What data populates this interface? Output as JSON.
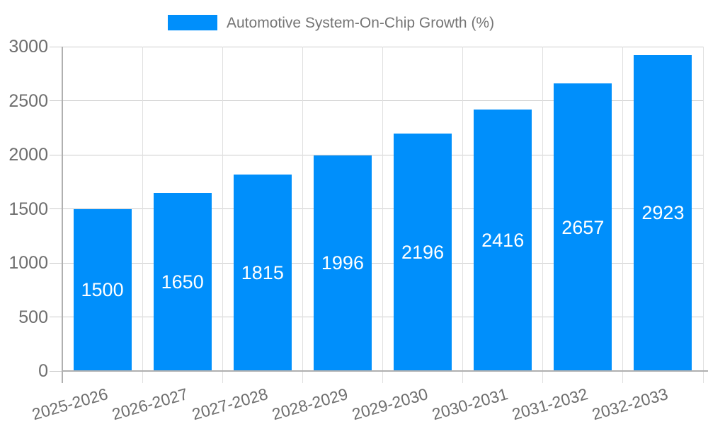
{
  "legend": {
    "position": "top"
  },
  "chart_data": {
    "type": "bar",
    "title": "Automotive System-On-Chip Growth (%)",
    "categories": [
      "2025-2026",
      "2026-2027",
      "2027-2028",
      "2028-2029",
      "2029-2030",
      "2030-2031",
      "2031-2032",
      "2032-2033"
    ],
    "series": [
      {
        "name": "Automotive System-On-Chip Growth (%)",
        "values": [
          1500,
          1650,
          1815,
          1996,
          2196,
          2416,
          2657,
          2923
        ]
      }
    ],
    "value_labels": [
      "1500",
      "1650",
      "1815",
      "1996",
      "2196",
      "2416",
      "2657",
      "2923"
    ],
    "xlabel": "",
    "ylabel": "",
    "ylim": [
      0,
      3000
    ],
    "yticks": [
      0,
      500,
      1000,
      1500,
      2000,
      2500,
      3000
    ],
    "grid": true,
    "legend_position": "top"
  },
  "colors": {
    "bar": "#008FFB",
    "value_text": "#ffffff",
    "tick_text": "#6e6e6e",
    "legend_text": "#757575",
    "gridline": "#cccccc",
    "boundary_line": "#e0e0e0",
    "axis_line": "#b0b0b0",
    "background": "#ffffff"
  }
}
